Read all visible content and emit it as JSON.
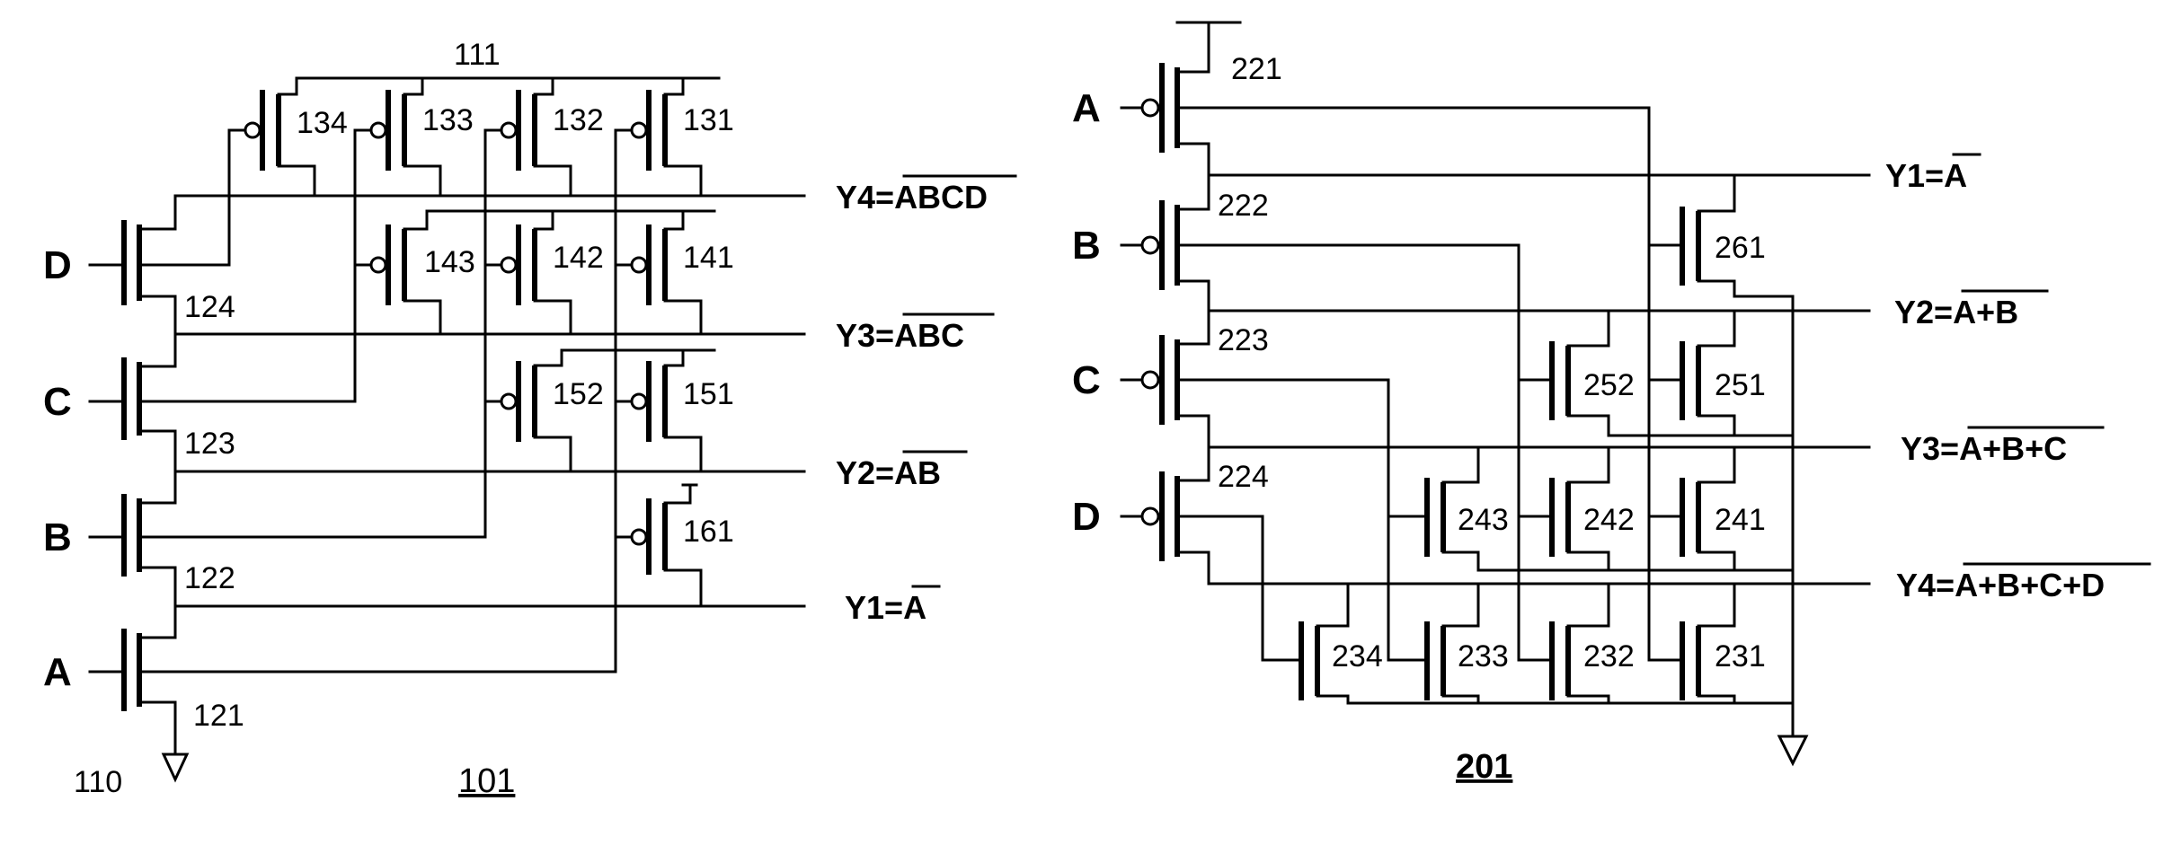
{
  "circuit_101": {
    "supply_label": "111",
    "ground_label": "110",
    "figure_label": "101",
    "inputs": [
      "D",
      "C",
      "B",
      "A"
    ],
    "nodes": [
      "124",
      "123",
      "122",
      "121"
    ],
    "transistors": [
      "134",
      "133",
      "132",
      "131",
      "143",
      "142",
      "141",
      "152",
      "151",
      "161"
    ],
    "outputs": [
      {
        "prefix": "Y4=",
        "bar": "ABCD"
      },
      {
        "prefix": "Y3=",
        "bar": "ABC"
      },
      {
        "prefix": "Y2=",
        "bar": "AB"
      },
      {
        "prefix": "Y1=",
        "bar": "A"
      }
    ]
  },
  "circuit_201": {
    "figure_label": "201",
    "inputs": [
      "A",
      "B",
      "C",
      "D"
    ],
    "nodes": [
      "221",
      "222",
      "223",
      "224"
    ],
    "transistors": [
      "261",
      "252",
      "251",
      "243",
      "242",
      "241",
      "234",
      "233",
      "232",
      "231"
    ],
    "outputs": [
      {
        "prefix": "Y1=",
        "bar": "A"
      },
      {
        "prefix": "Y2=",
        "bar": "A+B"
      },
      {
        "prefix": "Y3=",
        "bar": "A+B+C"
      },
      {
        "prefix": "Y4=",
        "bar": "A+B+C+D"
      }
    ]
  }
}
